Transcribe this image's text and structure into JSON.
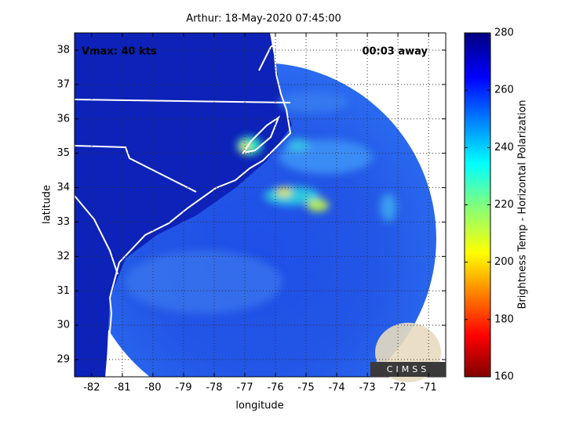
{
  "map": {
    "title": "Arthur: 18-May-2020 07:45:00",
    "annotations": [
      "Vmax: 40 kts",
      "00:03 away"
    ],
    "xlabel": "longitude",
    "ylabel": "latitude",
    "xlim": [
      -82.56,
      -70.44
    ],
    "ylim": [
      28.5,
      38.5
    ],
    "xticks": [
      -82,
      -81,
      -80,
      -79,
      -78,
      -77,
      -76,
      -75,
      -74,
      -73,
      -72,
      -71
    ],
    "yticks": [
      29,
      30,
      31,
      32,
      33,
      34,
      35,
      36,
      37,
      38
    ],
    "grid": true,
    "colorbar": {
      "label": "Brightness Temp - Horizontal Polarization",
      "lim": [
        160,
        280
      ],
      "ticks": [
        160,
        180,
        200,
        220,
        240,
        260,
        280
      ]
    },
    "logo": "CIMSS"
  }
}
